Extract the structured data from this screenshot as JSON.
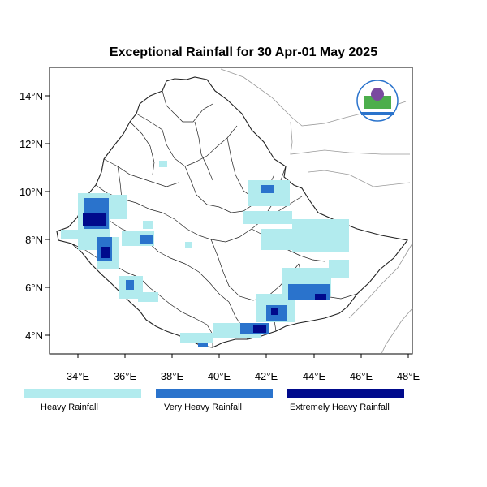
{
  "title": "Exceptional Rainfall for 30 Apr-01 May 2025",
  "axes": {
    "x_ticks": [
      "34°E",
      "36°E",
      "38°E",
      "40°E",
      "42°E",
      "44°E",
      "46°E",
      "48°E"
    ],
    "y_ticks": [
      "4°N",
      "6°N",
      "8°N",
      "10°N",
      "12°N",
      "14°N"
    ]
  },
  "legend": {
    "items": [
      {
        "label": "Heavy Rainfall",
        "color": "#b2ebee"
      },
      {
        "label": "Very Heavy Rainfall",
        "color": "#2a73cc"
      },
      {
        "label": "Extremely Heavy Rainfall",
        "color": "#000a8c"
      }
    ]
  },
  "colors": {
    "heavy": "#b2ebee",
    "very_heavy": "#2a73cc",
    "extreme": "#000a8c",
    "boundary": "#222222",
    "neighbor_border": "#999999"
  },
  "logo": {
    "icon": "meteorology-institute-logo"
  }
}
